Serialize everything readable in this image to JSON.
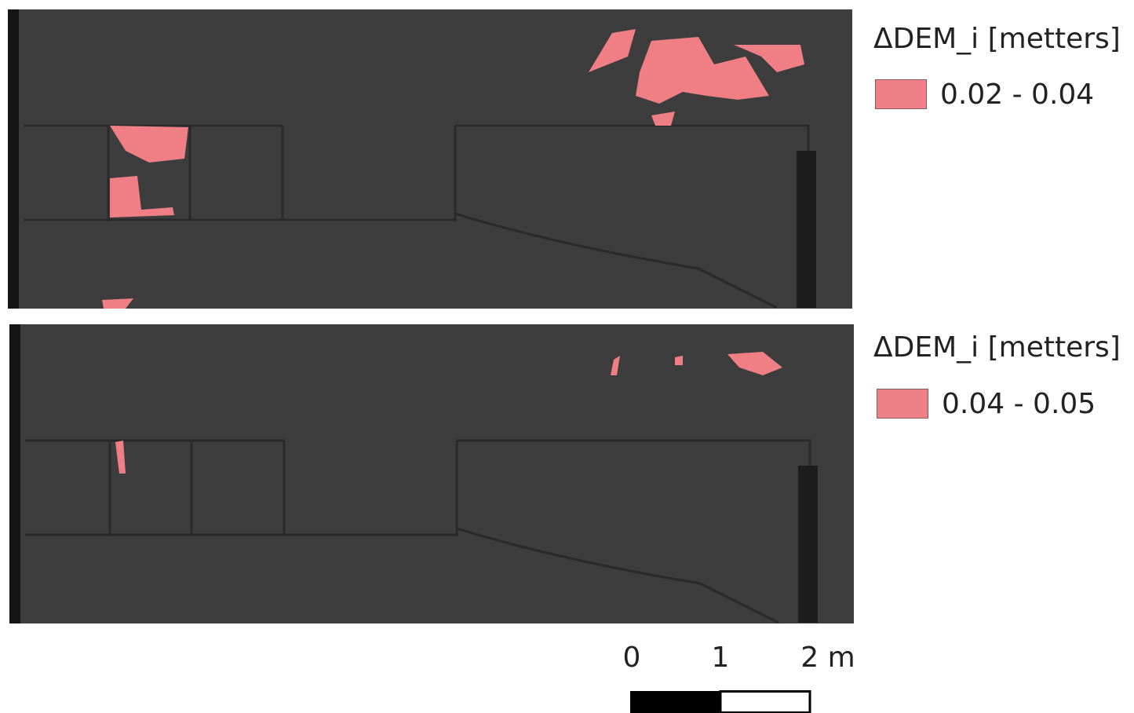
{
  "panels": [
    {
      "legend_title": "ΔDEM_i [metters]",
      "class_label": "0.02 - 0.04"
    },
    {
      "legend_title": "ΔDEM_i [metters]",
      "class_label": "0.04 - 0.05"
    }
  ],
  "scale_bar": {
    "labels": [
      "0",
      "1",
      "2 m"
    ]
  }
}
